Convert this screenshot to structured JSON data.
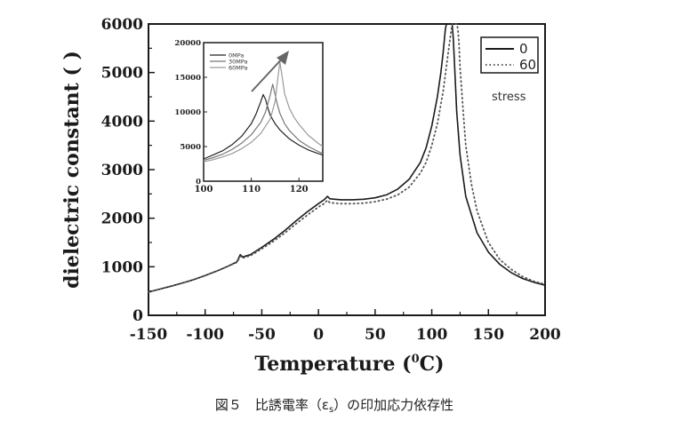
{
  "chart_data": [
    {
      "type": "line",
      "xlabel": "Temperature (⁰C)",
      "xlabel_main": "Temperature (",
      "xlabel_sup": "0",
      "xlabel_end": "C)",
      "ylabel": "dielectric constant ( )",
      "xlim": [
        -150,
        200
      ],
      "ylim": [
        0,
        6000
      ],
      "x_ticks": [
        -150,
        -100,
        -50,
        0,
        50,
        100,
        150,
        200
      ],
      "y_ticks": [
        0,
        1000,
        2000,
        3000,
        4000,
        5000,
        6000
      ],
      "grid": false,
      "legend_placement": "top-right",
      "legend_title": "stress",
      "series": [
        {
          "name": "0",
          "style": "solid",
          "color": "#1a1a1a",
          "x": [
            -150,
            -140,
            -130,
            -120,
            -110,
            -100,
            -90,
            -80,
            -72,
            -70,
            -69,
            -67,
            -60,
            -50,
            -40,
            -30,
            -20,
            -10,
            0,
            5,
            8,
            10,
            20,
            30,
            40,
            50,
            60,
            70,
            80,
            90,
            95,
            100,
            105,
            108,
            110,
            112,
            113,
            114,
            115,
            116,
            117,
            118,
            119,
            120,
            122,
            125,
            130,
            140,
            150,
            160,
            170,
            180,
            190,
            200
          ],
          "y": [
            480,
            540,
            600,
            665,
            735,
            820,
            910,
            1010,
            1100,
            1200,
            1250,
            1200,
            1250,
            1400,
            1560,
            1740,
            1940,
            2130,
            2300,
            2380,
            2450,
            2400,
            2380,
            2380,
            2390,
            2420,
            2480,
            2600,
            2800,
            3150,
            3450,
            3900,
            4500,
            5000,
            5400,
            5900,
            6000,
            6000,
            6000,
            6000,
            6000,
            6000,
            5700,
            5200,
            4200,
            3300,
            2450,
            1700,
            1300,
            1050,
            880,
            760,
            680,
            620
          ]
        },
        {
          "name": "60",
          "style": "dotted",
          "color": "#555555",
          "x": [
            -150,
            -140,
            -130,
            -120,
            -110,
            -100,
            -90,
            -80,
            -72,
            -70,
            -69,
            -67,
            -60,
            -50,
            -40,
            -30,
            -20,
            -10,
            0,
            5,
            8,
            10,
            20,
            30,
            40,
            50,
            60,
            70,
            80,
            90,
            95,
            100,
            105,
            110,
            115,
            118,
            120,
            121,
            122,
            123,
            124,
            125,
            128,
            130,
            135,
            140,
            150,
            160,
            170,
            180,
            190,
            200
          ],
          "y": [
            480,
            540,
            600,
            665,
            735,
            820,
            910,
            1010,
            1090,
            1170,
            1220,
            1180,
            1230,
            1370,
            1520,
            1690,
            1880,
            2060,
            2230,
            2300,
            2370,
            2320,
            2300,
            2300,
            2310,
            2340,
            2390,
            2480,
            2640,
            2930,
            3150,
            3500,
            3950,
            4600,
            5500,
            6000,
            6000,
            6000,
            6000,
            5900,
            5600,
            5100,
            4100,
            3500,
            2700,
            2150,
            1500,
            1150,
            950,
            800,
            700,
            640
          ]
        }
      ]
    },
    {
      "type": "line",
      "title": "",
      "xlim": [
        100,
        125
      ],
      "ylim": [
        0,
        20000
      ],
      "x_ticks": [
        100,
        110,
        120
      ],
      "y_ticks": [
        0,
        5000,
        10000,
        15000,
        20000
      ],
      "legend_placement": "top-left",
      "annotations": [
        "arrow pointing up-right across peaks"
      ],
      "series": [
        {
          "name": "0MPa",
          "color": "#222222",
          "x": [
            100,
            102,
            104,
            106,
            108,
            110,
            111,
            112,
            112.5,
            113,
            113.5,
            114,
            115,
            116,
            118,
            120,
            122,
            124,
            125
          ],
          "y": [
            3200,
            3800,
            4400,
            5300,
            6500,
            8300,
            9700,
            11500,
            12500,
            11800,
            10500,
            9500,
            8300,
            7400,
            6100,
            5200,
            4500,
            4000,
            3800
          ]
        },
        {
          "name": "30MPa",
          "color": "#777777",
          "x": [
            100,
            102,
            104,
            106,
            108,
            110,
            112,
            113,
            114,
            114.5,
            115,
            115.5,
            116,
            117,
            118,
            120,
            122,
            124,
            125
          ],
          "y": [
            3000,
            3400,
            3900,
            4600,
            5500,
            6700,
            8500,
            10000,
            12500,
            14000,
            12500,
            11000,
            9800,
            8300,
            7300,
            5900,
            5000,
            4300,
            4000
          ]
        },
        {
          "name": "60MPa",
          "color": "#9a9a9a",
          "x": [
            100,
            102,
            104,
            106,
            108,
            110,
            112,
            114,
            115,
            115.5,
            116,
            116.5,
            117,
            118,
            119,
            120,
            122,
            124,
            125
          ],
          "y": [
            2800,
            3100,
            3500,
            4000,
            4700,
            5600,
            6900,
            9000,
            11500,
            14500,
            17200,
            15000,
            12600,
            10500,
            9200,
            8200,
            6600,
            5500,
            5000
          ]
        }
      ]
    }
  ],
  "legend": {
    "entries": [
      "0",
      "60"
    ],
    "title": "stress"
  },
  "inset_legend": [
    "0MPa",
    "30MPa",
    "60MPa"
  ],
  "caption": "図５　比誘電率（εs）の印加応力依存性",
  "caption_main": "図５　比誘電率（ε",
  "caption_sub": "s",
  "caption_end": "）の印加応力依存性"
}
